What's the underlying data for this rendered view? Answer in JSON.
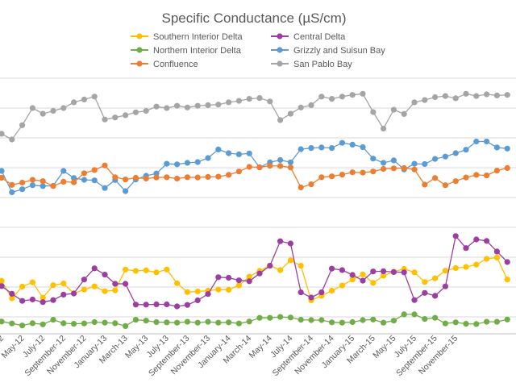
{
  "chart_data": {
    "type": "line",
    "title": "Specific Conductance (µS/cm)",
    "grid": "horizontal",
    "legend_position": "top",
    "x_tick_labels": [
      "May-12",
      "July-12",
      "September-12",
      "November-12",
      "January-13",
      "March-13",
      "May-13",
      "July-13",
      "September-13",
      "November-13",
      "January-14",
      "March-14",
      "May-14",
      "July-14",
      "September-14",
      "November-14",
      "January-15",
      "March-15",
      "May-15",
      "July-15",
      "September-15",
      "November-15"
    ],
    "series": [
      {
        "name": "Southern Interior Delta",
        "color": "#ffc000",
        "values": [
          535,
          474,
          515,
          530,
          476,
          520,
          526,
          491,
          505,
          516,
          499,
          502,
          575,
          570,
          572,
          565,
          575,
          527,
          496,
          498,
          501,
          505,
          504,
          519,
          550,
          570,
          589,
          573,
          607,
          588,
          467,
          483,
          501,
          519,
          540,
          558,
          528,
          553,
          567,
          577,
          565,
          531,
          544,
          571,
          580,
          584,
          592,
          612,
          617,
          540
        ]
      },
      {
        "name": "Northern Interior Delta",
        "color": "#70ad47",
        "values": [
          393,
          386,
          379,
          387,
          383,
          399,
          387,
          385,
          386,
          391,
          389,
          387,
          377,
          399,
          396,
          391,
          390,
          389,
          392,
          389,
          392,
          389,
          390,
          386,
          393,
          406,
          406,
          409,
          407,
          399,
          398,
          398,
          390,
          389,
          391,
          398,
          400,
          389,
          396,
          418,
          418,
          402,
          406,
          386,
          390,
          385,
          384,
          392,
          392,
          400
        ]
      },
      {
        "name": "Central Delta",
        "color": "#9b3ea0",
        "values": [
          517,
          490,
          465,
          470,
          461,
          468,
          487,
          491,
          540,
          579,
          557,
          525,
          525,
          452,
          452,
          453,
          453,
          446,
          451,
          467,
          489,
          548,
          546,
          537,
          534,
          561,
          588,
          674,
          666,
          495,
          477,
          495,
          578,
          573,
          556,
          536,
          568,
          569,
          566,
          565,
          468,
          493,
          483,
          516,
          692,
          650,
          680,
          675,
          638,
          601
        ]
      },
      {
        "name": "Grizzly and Suisun Bay",
        "color": "#5b9bd5",
        "values": [
          920,
          845,
          856,
          870,
          867,
          868,
          920,
          895,
          889,
          887,
          860,
          888,
          849,
          890,
          903,
          911,
          945,
          943,
          948,
          951,
          965,
          995,
          982,
          978,
          981,
          932,
          950,
          958,
          950,
          996,
          1000,
          1002,
          1000,
          1018,
          1012,
          1003,
          963,
          948,
          957,
          925,
          945,
          944,
          962,
          970,
          982,
          994,
          1023,
          1023,
          1002,
          998
        ]
      },
      {
        "name": "Confluence",
        "color": "#ed7d31",
        "values": [
          896,
          871,
          879,
          889,
          884,
          867,
          882,
          880,
          912,
          923,
          939,
          898,
          890,
          896,
          893,
          897,
          898,
          893,
          898,
          897,
          899,
          900,
          906,
          918,
          934,
          933,
          938,
          937,
          932,
          862,
          873,
          898,
          901,
          907,
          915,
          914,
          918,
          927,
          929,
          930,
          925,
          872,
          895,
          870,
          884,
          897,
          906,
          904,
          921,
          930
        ]
      },
      {
        "name": "San Pablo Bay",
        "color": "#a5a5a5",
        "values": [
          1050,
          1030,
          1080,
          1140,
          1120,
          1130,
          1140,
          1160,
          1170,
          1180,
          1100,
          1107,
          1115,
          1125,
          1130,
          1145,
          1140,
          1148,
          1142,
          1148,
          1150,
          1152,
          1160,
          1165,
          1172,
          1175,
          1163,
          1098,
          1120,
          1142,
          1150,
          1180,
          1172,
          1180,
          1186,
          1190,
          1126,
          1068,
          1134,
          1119,
          1160,
          1168,
          1178,
          1182,
          1174,
          1190,
          1182,
          1188,
          1184,
          1186
        ]
      }
    ]
  }
}
